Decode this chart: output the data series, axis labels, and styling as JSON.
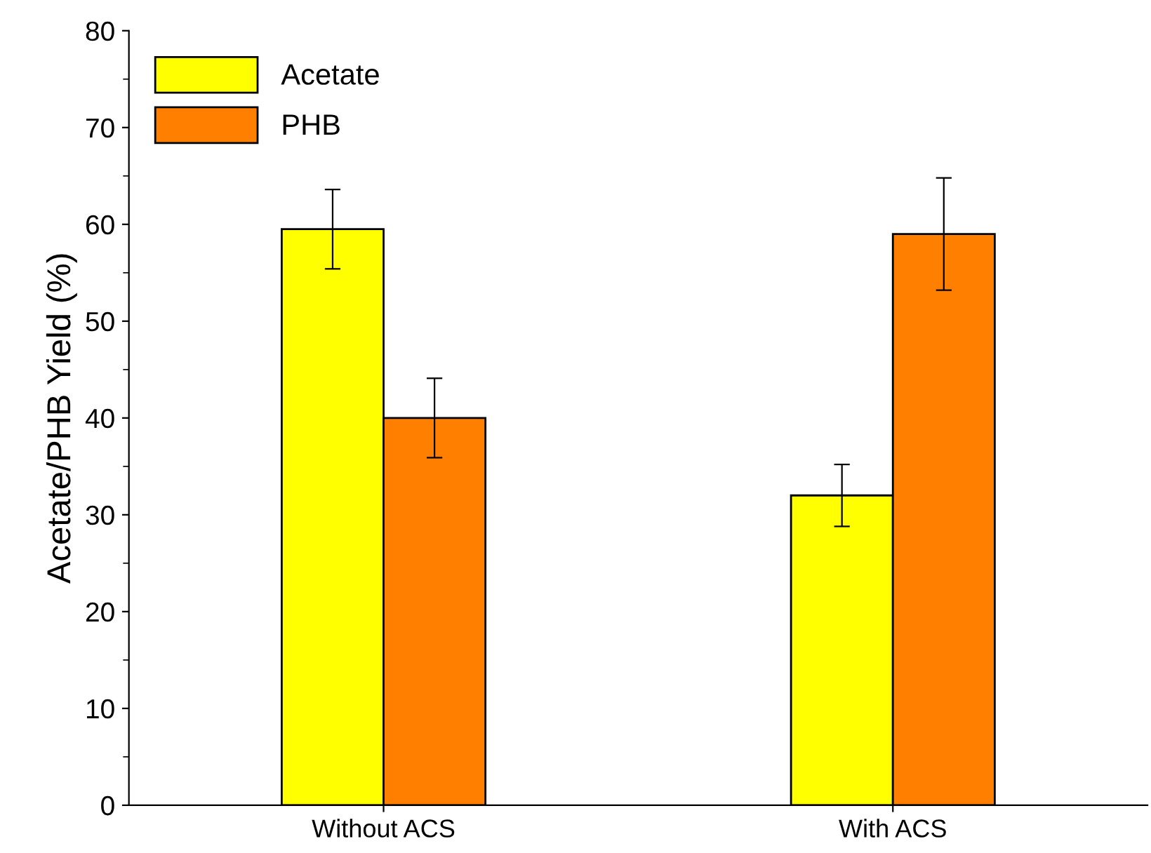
{
  "chart_data": {
    "type": "bar",
    "ylabel": "Acetate/PHB Yield (%)",
    "categories": [
      "Without ACS",
      "With ACS"
    ],
    "series": [
      {
        "name": "Acetate",
        "color": "#ffff00",
        "values": [
          59.5,
          32.0
        ],
        "errors": [
          4.1,
          3.2
        ]
      },
      {
        "name": "PHB",
        "color": "#ff8000",
        "values": [
          40.0,
          59.0
        ],
        "errors": [
          4.1,
          5.8
        ]
      }
    ],
    "ylim": [
      0,
      80
    ],
    "yticks": [
      0,
      10,
      20,
      30,
      40,
      50,
      60,
      70,
      80
    ],
    "grid": false,
    "legend": "top left"
  }
}
